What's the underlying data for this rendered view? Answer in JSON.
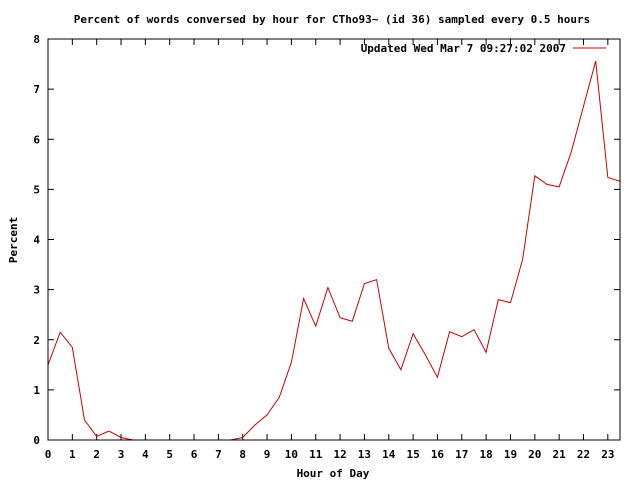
{
  "chart_data": {
    "type": "line",
    "title": "Percent of words conversed by hour for CTho93~ (id 36) sampled every 0.5 hours",
    "xlabel": "Hour of Day",
    "ylabel": "Percent",
    "xlim": [
      0,
      23.5
    ],
    "ylim": [
      0,
      8
    ],
    "x_ticks": [
      0,
      1,
      2,
      3,
      4,
      5,
      6,
      7,
      8,
      9,
      10,
      11,
      12,
      13,
      14,
      15,
      16,
      17,
      18,
      19,
      20,
      21,
      22,
      23
    ],
    "y_ticks": [
      0,
      1,
      2,
      3,
      4,
      5,
      6,
      7,
      8
    ],
    "grid": false,
    "legend_position": "top-right",
    "series": [
      {
        "name": "Updated Wed Mar  7 09:27:02 2007",
        "color": "#cc0000",
        "x": [
          0,
          0.5,
          1,
          1.5,
          2,
          2.5,
          3,
          3.5,
          4,
          4.5,
          5,
          5.5,
          6,
          6.5,
          7,
          7.5,
          8,
          8.5,
          9,
          9.5,
          10,
          10.5,
          11,
          11.5,
          12,
          12.5,
          13,
          13.5,
          14,
          14.5,
          15,
          15.5,
          16,
          16.5,
          17,
          17.5,
          18,
          18.5,
          19,
          19.5,
          20,
          20.5,
          21,
          21.5,
          22,
          22.5,
          23,
          23.5
        ],
        "y": [
          1.5,
          2.15,
          1.85,
          0.4,
          0.07,
          0.18,
          0.05,
          0,
          0,
          0,
          0,
          0,
          0,
          0,
          0,
          0,
          0.05,
          0.3,
          0.5,
          0.85,
          1.55,
          2.82,
          2.27,
          3.04,
          2.44,
          2.37,
          3.12,
          3.2,
          1.83,
          1.4,
          2.12,
          1.7,
          1.25,
          2.16,
          2.06,
          2.2,
          1.75,
          2.8,
          2.74,
          3.6,
          5.27,
          5.1,
          5.05,
          5.75,
          6.66,
          7.56,
          5.24,
          5.16
        ]
      }
    ]
  }
}
